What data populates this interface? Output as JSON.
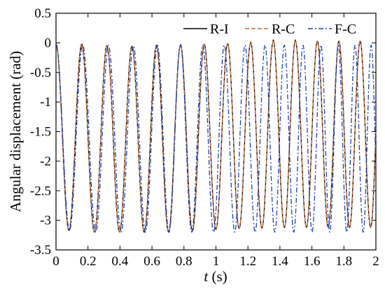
{
  "chart_data": {
    "type": "line",
    "xlabel_prefix": "t",
    "xlabel_suffix": " (s)",
    "ylabel": "Angular displacement (rad)",
    "xlim": [
      0,
      2
    ],
    "ylim": [
      -3.5,
      0.5
    ],
    "x_ticks": [
      "0",
      "0.2",
      "0.4",
      "0.6",
      "0.8",
      "1",
      "1.2",
      "1.4",
      "1.6",
      "1.8",
      "2"
    ],
    "y_ticks": [
      "0.5",
      "0",
      "-0.5",
      "-1",
      "-1.5",
      "-2",
      "-2.5",
      "-3",
      "-3.5"
    ],
    "x_tick_values": [
      0,
      0.2,
      0.4,
      0.6,
      0.8,
      1,
      1.2,
      1.4,
      1.6,
      1.8,
      2
    ],
    "y_tick_values": [
      0.5,
      0,
      -0.5,
      -1,
      -1.5,
      -2,
      -2.5,
      -3,
      -3.5
    ],
    "grid": false,
    "legend_position": "top-right",
    "series": [
      {
        "name": "R-I",
        "color": "#000000",
        "style": "solid",
        "start_period": 0.162,
        "end_period": 0.13,
        "peak_values": [
          -0.02,
          -0.04,
          -0.06,
          -0.05,
          -0.04,
          -0.03,
          -0.02,
          -0.01,
          0.02,
          0.05,
          0.03,
          0.03,
          0.03,
          0.03,
          0.03,
          0.03
        ],
        "trough_values": [
          -3.17,
          -3.2,
          -3.2,
          -3.2,
          -3.2,
          -3.18,
          -3.15,
          -3.14,
          -3.13,
          -3.12,
          -3.12,
          -3.12,
          -3.12,
          -3.12,
          -3.12,
          -3.12
        ]
      },
      {
        "name": "R-C",
        "color": "#c0703a",
        "style": "dashed",
        "start_period": 0.162,
        "end_period": 0.13,
        "peak_values": [
          -0.02,
          -0.04,
          -0.06,
          -0.05,
          -0.04,
          -0.03,
          -0.02,
          -0.01,
          0.02,
          0.05,
          0.03,
          0.03,
          0.03,
          0.03,
          0.03,
          0.03
        ],
        "trough_values": [
          -3.17,
          -3.2,
          -3.2,
          -3.2,
          -3.2,
          -3.18,
          -3.15,
          -3.14,
          -3.13,
          -3.12,
          -3.12,
          -3.12,
          -3.12,
          -3.12,
          -3.12,
          -3.12
        ]
      },
      {
        "name": "F-C",
        "color": "#1f3fb0",
        "style": "dashdot",
        "start_period": 0.17,
        "end_period": 0.098,
        "peak_values": [
          -0.02,
          -0.04,
          -0.05,
          -0.05,
          -0.04,
          -0.04,
          -0.04,
          -0.04,
          -0.04,
          -0.04,
          -0.04,
          -0.04,
          -0.04,
          -0.04,
          -0.04,
          -0.04,
          -0.04,
          -0.04,
          -0.04
        ],
        "trough_values": [
          -3.17,
          -3.2,
          -3.2,
          -3.2,
          -3.2,
          -3.2,
          -3.2,
          -3.2,
          -3.2,
          -3.2,
          -3.2,
          -3.2,
          -3.2,
          -3.2,
          -3.2,
          -3.2,
          -3.2,
          -3.2,
          -3.2
        ]
      }
    ]
  }
}
